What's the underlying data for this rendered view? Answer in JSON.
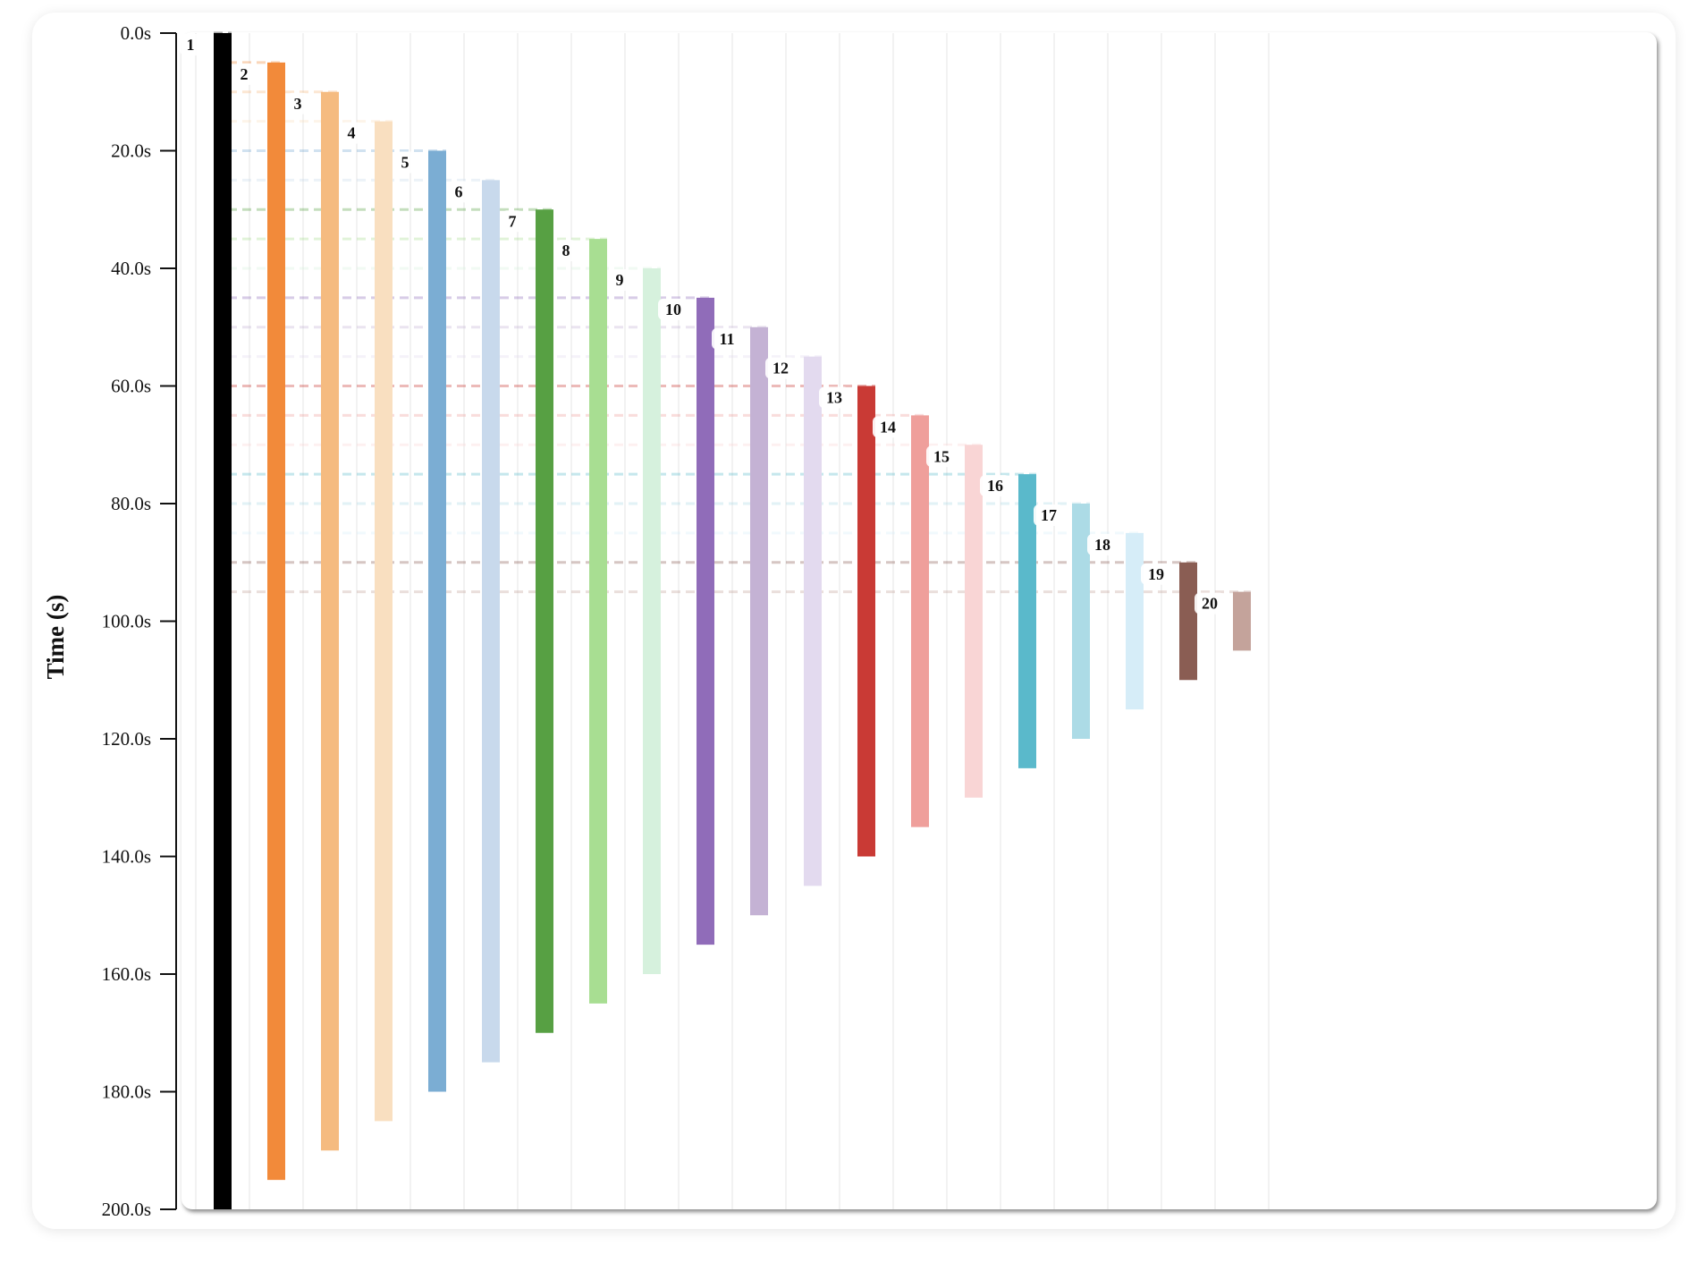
{
  "chart_data": {
    "type": "bar",
    "orientation": "vertical-timeline",
    "ylabel": "Time (s)",
    "ylim": [
      0,
      200
    ],
    "y_ticks": [
      "0.0s",
      "20.0s",
      "40.0s",
      "60.0s",
      "80.0s",
      "100.0s",
      "120.0s",
      "140.0s",
      "160.0s",
      "180.0s",
      "200.0s"
    ],
    "y_tick_values": [
      0,
      20,
      40,
      60,
      80,
      100,
      120,
      140,
      160,
      180,
      200
    ],
    "grid": false,
    "start_lines": true,
    "bars": [
      {
        "label": "1",
        "start": 0,
        "end": 200,
        "color": "#000000"
      },
      {
        "label": "2",
        "start": 5,
        "end": 195,
        "color": "#f28a3a"
      },
      {
        "label": "3",
        "start": 10,
        "end": 190,
        "color": "#f5bb80"
      },
      {
        "label": "4",
        "start": 15,
        "end": 185,
        "color": "#f9dfc0"
      },
      {
        "label": "5",
        "start": 20,
        "end": 180,
        "color": "#7badd3"
      },
      {
        "label": "6",
        "start": 25,
        "end": 175,
        "color": "#c8d9ec"
      },
      {
        "label": "7",
        "start": 30,
        "end": 170,
        "color": "#57a043"
      },
      {
        "label": "8",
        "start": 35,
        "end": 165,
        "color": "#a8de92"
      },
      {
        "label": "9",
        "start": 40,
        "end": 160,
        "color": "#d6f1dd"
      },
      {
        "label": "10",
        "start": 45,
        "end": 155,
        "color": "#906cb9"
      },
      {
        "label": "11",
        "start": 50,
        "end": 150,
        "color": "#c4b2d4"
      },
      {
        "label": "12",
        "start": 55,
        "end": 145,
        "color": "#e3daef"
      },
      {
        "label": "13",
        "start": 60,
        "end": 140,
        "color": "#c93a35"
      },
      {
        "label": "14",
        "start": 65,
        "end": 135,
        "color": "#ef9f9b"
      },
      {
        "label": "15",
        "start": 70,
        "end": 130,
        "color": "#f9d5d5"
      },
      {
        "label": "16",
        "start": 75,
        "end": 125,
        "color": "#5ab9cb"
      },
      {
        "label": "17",
        "start": 80,
        "end": 120,
        "color": "#acdbe6"
      },
      {
        "label": "18",
        "start": 85,
        "end": 115,
        "color": "#d6edf8"
      },
      {
        "label": "19",
        "start": 90,
        "end": 110,
        "color": "#8a5d53"
      },
      {
        "label": "20",
        "start": 95,
        "end": 105,
        "color": "#c4a39b"
      }
    ]
  }
}
